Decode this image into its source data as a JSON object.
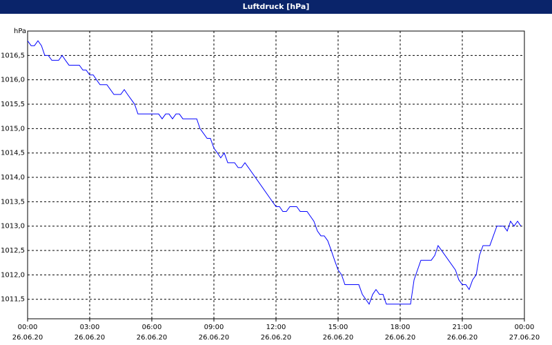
{
  "chart_data": {
    "type": "line",
    "title": "Luftdruck [hPa]",
    "y_label": "hPa",
    "xlim": [
      0,
      24
    ],
    "xticks": [
      {
        "value": 0,
        "label": "00:00",
        "date": "26.06.20"
      },
      {
        "value": 3,
        "label": "03:00",
        "date": "26.06.20"
      },
      {
        "value": 6,
        "label": "06:00",
        "date": "26.06.20"
      },
      {
        "value": 9,
        "label": "09:00",
        "date": "26.06.20"
      },
      {
        "value": 12,
        "label": "12:00",
        "date": "26.06.20"
      },
      {
        "value": 15,
        "label": "15:00",
        "date": "26.06.20"
      },
      {
        "value": 18,
        "label": "18:00",
        "date": "26.06.20"
      },
      {
        "value": 21,
        "label": "21:00",
        "date": "26.06.20"
      },
      {
        "value": 24,
        "label": "00:00",
        "date": "27.06.20"
      }
    ],
    "ylim": [
      1011.1,
      1017.0
    ],
    "yticks": [
      {
        "value": 1011.5,
        "label": "1011,5"
      },
      {
        "value": 1012.0,
        "label": "1012,0"
      },
      {
        "value": 1012.5,
        "label": "1012,5"
      },
      {
        "value": 1013.0,
        "label": "1013,0"
      },
      {
        "value": 1013.5,
        "label": "1013,5"
      },
      {
        "value": 1014.0,
        "label": "1014,0"
      },
      {
        "value": 1014.5,
        "label": "1014,5"
      },
      {
        "value": 1015.0,
        "label": "1015,0"
      },
      {
        "value": 1015.5,
        "label": "1015,5"
      },
      {
        "value": 1016.0,
        "label": "1016,0"
      },
      {
        "value": 1016.5,
        "label": "1016,5"
      }
    ],
    "grid": true,
    "color": "#0000ff",
    "x": [
      0,
      0.17,
      0.33,
      0.5,
      0.67,
      0.83,
      1,
      1.17,
      1.5,
      1.67,
      1.83,
      2,
      2.5,
      2.67,
      2.83,
      3,
      3.17,
      3.33,
      3.5,
      3.83,
      4,
      4.17,
      4.5,
      4.67,
      4.83,
      5,
      5.17,
      5.33,
      6.33,
      6.5,
      6.67,
      6.83,
      7,
      7.17,
      7.33,
      7.5,
      8.17,
      8.33,
      8.5,
      8.67,
      8.83,
      9,
      9.17,
      9.33,
      9.5,
      9.67,
      10,
      10.17,
      10.33,
      10.5,
      10.67,
      11.83,
      12,
      12.17,
      12.33,
      12.5,
      12.67,
      13,
      13.17,
      13.5,
      13.83,
      14,
      14.17,
      14.33,
      14.5,
      14.67,
      14.83,
      15,
      15.17,
      15.33,
      16,
      16.17,
      16.5,
      16.67,
      16.83,
      17,
      17.17,
      17.33,
      18.5,
      18.67,
      19,
      19.5,
      19.67,
      19.83,
      20,
      20.67,
      20.83,
      21,
      21.17,
      21.33,
      21.5,
      21.67,
      21.83,
      22,
      22.33,
      22.67,
      23,
      23.17,
      23.33,
      23.5,
      23.67,
      23.83
    ],
    "values": [
      1016.8,
      1016.7,
      1016.7,
      1016.8,
      1016.7,
      1016.5,
      1016.5,
      1016.4,
      1016.4,
      1016.5,
      1016.4,
      1016.3,
      1016.3,
      1016.2,
      1016.2,
      1016.1,
      1016.1,
      1016.0,
      1015.9,
      1015.9,
      1015.8,
      1015.7,
      1015.7,
      1015.8,
      1015.7,
      1015.6,
      1015.5,
      1015.3,
      1015.3,
      1015.2,
      1015.3,
      1015.3,
      1015.2,
      1015.3,
      1015.3,
      1015.2,
      1015.2,
      1015.0,
      1014.9,
      1014.8,
      1014.8,
      1014.6,
      1014.5,
      1014.4,
      1014.5,
      1014.3,
      1014.3,
      1014.2,
      1014.2,
      1014.3,
      1014.2,
      1013.5,
      1013.4,
      1013.4,
      1013.3,
      1013.3,
      1013.4,
      1013.4,
      1013.3,
      1013.3,
      1013.1,
      1012.9,
      1012.8,
      1012.8,
      1012.7,
      1012.5,
      1012.3,
      1012.1,
      1012.0,
      1011.8,
      1011.8,
      1011.6,
      1011.4,
      1011.6,
      1011.7,
      1011.6,
      1011.6,
      1011.4,
      1011.4,
      1011.9,
      1012.3,
      1012.3,
      1012.4,
      1012.6,
      1012.5,
      1012.1,
      1011.9,
      1011.8,
      1011.8,
      1011.7,
      1011.9,
      1012.0,
      1012.4,
      1012.6,
      1012.6,
      1013.0,
      1013.0,
      1012.9,
      1013.1,
      1013.0,
      1013.1,
      1013.0
    ]
  }
}
